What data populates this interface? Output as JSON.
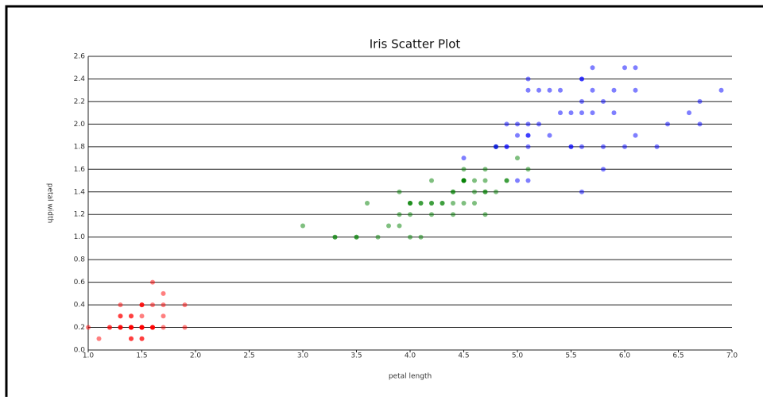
{
  "chart_data": {
    "type": "scatter",
    "title": "Iris Scatter Plot",
    "xlabel": "petal length",
    "ylabel": "petal width",
    "xlim": [
      1.0,
      7.0
    ],
    "ylim": [
      0.0,
      2.6
    ],
    "xticks": [
      {
        "value": 1.0,
        "label": "1.0"
      },
      1.5,
      {
        "value": 2.0,
        "label": "2.0"
      },
      2.5,
      {
        "value": 3.0,
        "label": "3.0"
      },
      3.5,
      {
        "value": 4.0,
        "label": "4.0"
      },
      4.5,
      {
        "value": 5.0,
        "label": "5.0"
      },
      5.5,
      {
        "value": 6.0,
        "label": "6.0"
      },
      6.5,
      {
        "value": 7.0,
        "label": "7.0"
      }
    ],
    "yticks": [
      {
        "value": 0.0,
        "label": "0.0"
      },
      0.2,
      0.4,
      0.6,
      0.8,
      {
        "value": 1.0,
        "label": "1.0"
      },
      1.2,
      1.4,
      1.6,
      1.8,
      {
        "value": 2.0,
        "label": "2.0"
      },
      2.2,
      2.4,
      2.6
    ],
    "grid": true,
    "opacity": 0.5,
    "series": [
      {
        "color": "#ff0000",
        "x": [
          1.4,
          1.4,
          1.3,
          1.5,
          1.4,
          1.7,
          1.4,
          1.5,
          1.4,
          1.5,
          1.5,
          1.6,
          1.4,
          1.1,
          1.2,
          1.5,
          1.3,
          1.4,
          1.7,
          1.5,
          1.7,
          1.5,
          1.0,
          1.7,
          1.9,
          1.6,
          1.6,
          1.5,
          1.4,
          1.6,
          1.6,
          1.5,
          1.5,
          1.4,
          1.5,
          1.2,
          1.3,
          1.4,
          1.3,
          1.5,
          1.3,
          1.3,
          1.3,
          1.6,
          1.9,
          1.6,
          1.4,
          1.5,
          1.4,
          1.5
        ],
        "values": [
          0.2,
          0.2,
          0.2,
          0.2,
          0.2,
          0.4,
          0.3,
          0.2,
          0.2,
          0.1,
          0.2,
          0.2,
          0.1,
          0.1,
          0.2,
          0.4,
          0.4,
          0.3,
          0.3,
          0.3,
          0.2,
          0.4,
          0.2,
          0.5,
          0.2,
          0.2,
          0.4,
          0.2,
          0.2,
          0.2,
          0.2,
          0.4,
          0.1,
          0.2,
          0.2,
          0.2,
          0.2,
          0.1,
          0.2,
          0.2,
          0.3,
          0.3,
          0.2,
          0.6,
          0.4,
          0.2,
          0.2,
          0.2,
          0.2,
          0.2
        ]
      },
      {
        "color": "#008000",
        "x": [
          4.7,
          4.5,
          4.9,
          4.0,
          4.6,
          4.5,
          4.7,
          3.3,
          4.6,
          3.9,
          3.5,
          4.2,
          4.0,
          4.7,
          3.6,
          4.4,
          4.5,
          4.1,
          4.5,
          3.9,
          4.8,
          4.0,
          4.9,
          4.7,
          4.3,
          4.4,
          4.8,
          5.0,
          4.5,
          3.5,
          3.8,
          3.7,
          3.9,
          5.1,
          4.5,
          4.5,
          4.7,
          4.4,
          4.1,
          4.0,
          4.4,
          4.6,
          4.0,
          3.3,
          4.2,
          4.2,
          4.2,
          4.3,
          3.0,
          4.1
        ],
        "values": [
          1.4,
          1.5,
          1.5,
          1.3,
          1.5,
          1.3,
          1.6,
          1.0,
          1.3,
          1.4,
          1.0,
          1.5,
          1.0,
          1.4,
          1.3,
          1.4,
          1.5,
          1.0,
          1.5,
          1.1,
          1.8,
          1.3,
          1.5,
          1.2,
          1.3,
          1.4,
          1.4,
          1.7,
          1.5,
          1.0,
          1.1,
          1.0,
          1.2,
          1.6,
          1.5,
          1.6,
          1.5,
          1.3,
          1.3,
          1.3,
          1.2,
          1.4,
          1.2,
          1.0,
          1.3,
          1.2,
          1.3,
          1.3,
          1.1,
          1.3
        ]
      },
      {
        "color": "#0000ff",
        "x": [
          6.0,
          5.1,
          5.9,
          5.6,
          5.8,
          6.6,
          4.5,
          6.3,
          5.8,
          6.1,
          5.1,
          5.3,
          5.5,
          5.0,
          5.1,
          5.3,
          5.5,
          6.7,
          6.9,
          5.0,
          5.7,
          4.9,
          6.7,
          4.9,
          5.7,
          6.0,
          4.8,
          4.9,
          5.6,
          5.8,
          6.1,
          6.4,
          5.6,
          5.1,
          5.6,
          6.1,
          5.6,
          5.5,
          4.8,
          5.4,
          5.6,
          5.1,
          5.1,
          5.9,
          5.7,
          5.2,
          5.0,
          5.2,
          5.4,
          5.1
        ],
        "values": [
          2.5,
          1.9,
          2.1,
          1.8,
          2.2,
          2.1,
          1.7,
          1.8,
          1.8,
          2.5,
          2.0,
          1.9,
          2.1,
          2.0,
          2.4,
          2.3,
          1.8,
          2.2,
          2.3,
          1.5,
          2.3,
          2.0,
          2.0,
          1.8,
          2.1,
          1.8,
          1.8,
          1.8,
          2.1,
          1.6,
          1.9,
          2.0,
          2.2,
          1.5,
          1.4,
          2.3,
          2.4,
          1.8,
          1.8,
          2.1,
          2.4,
          2.3,
          1.9,
          2.3,
          2.5,
          2.3,
          1.9,
          2.0,
          2.3,
          1.8
        ]
      }
    ]
  }
}
